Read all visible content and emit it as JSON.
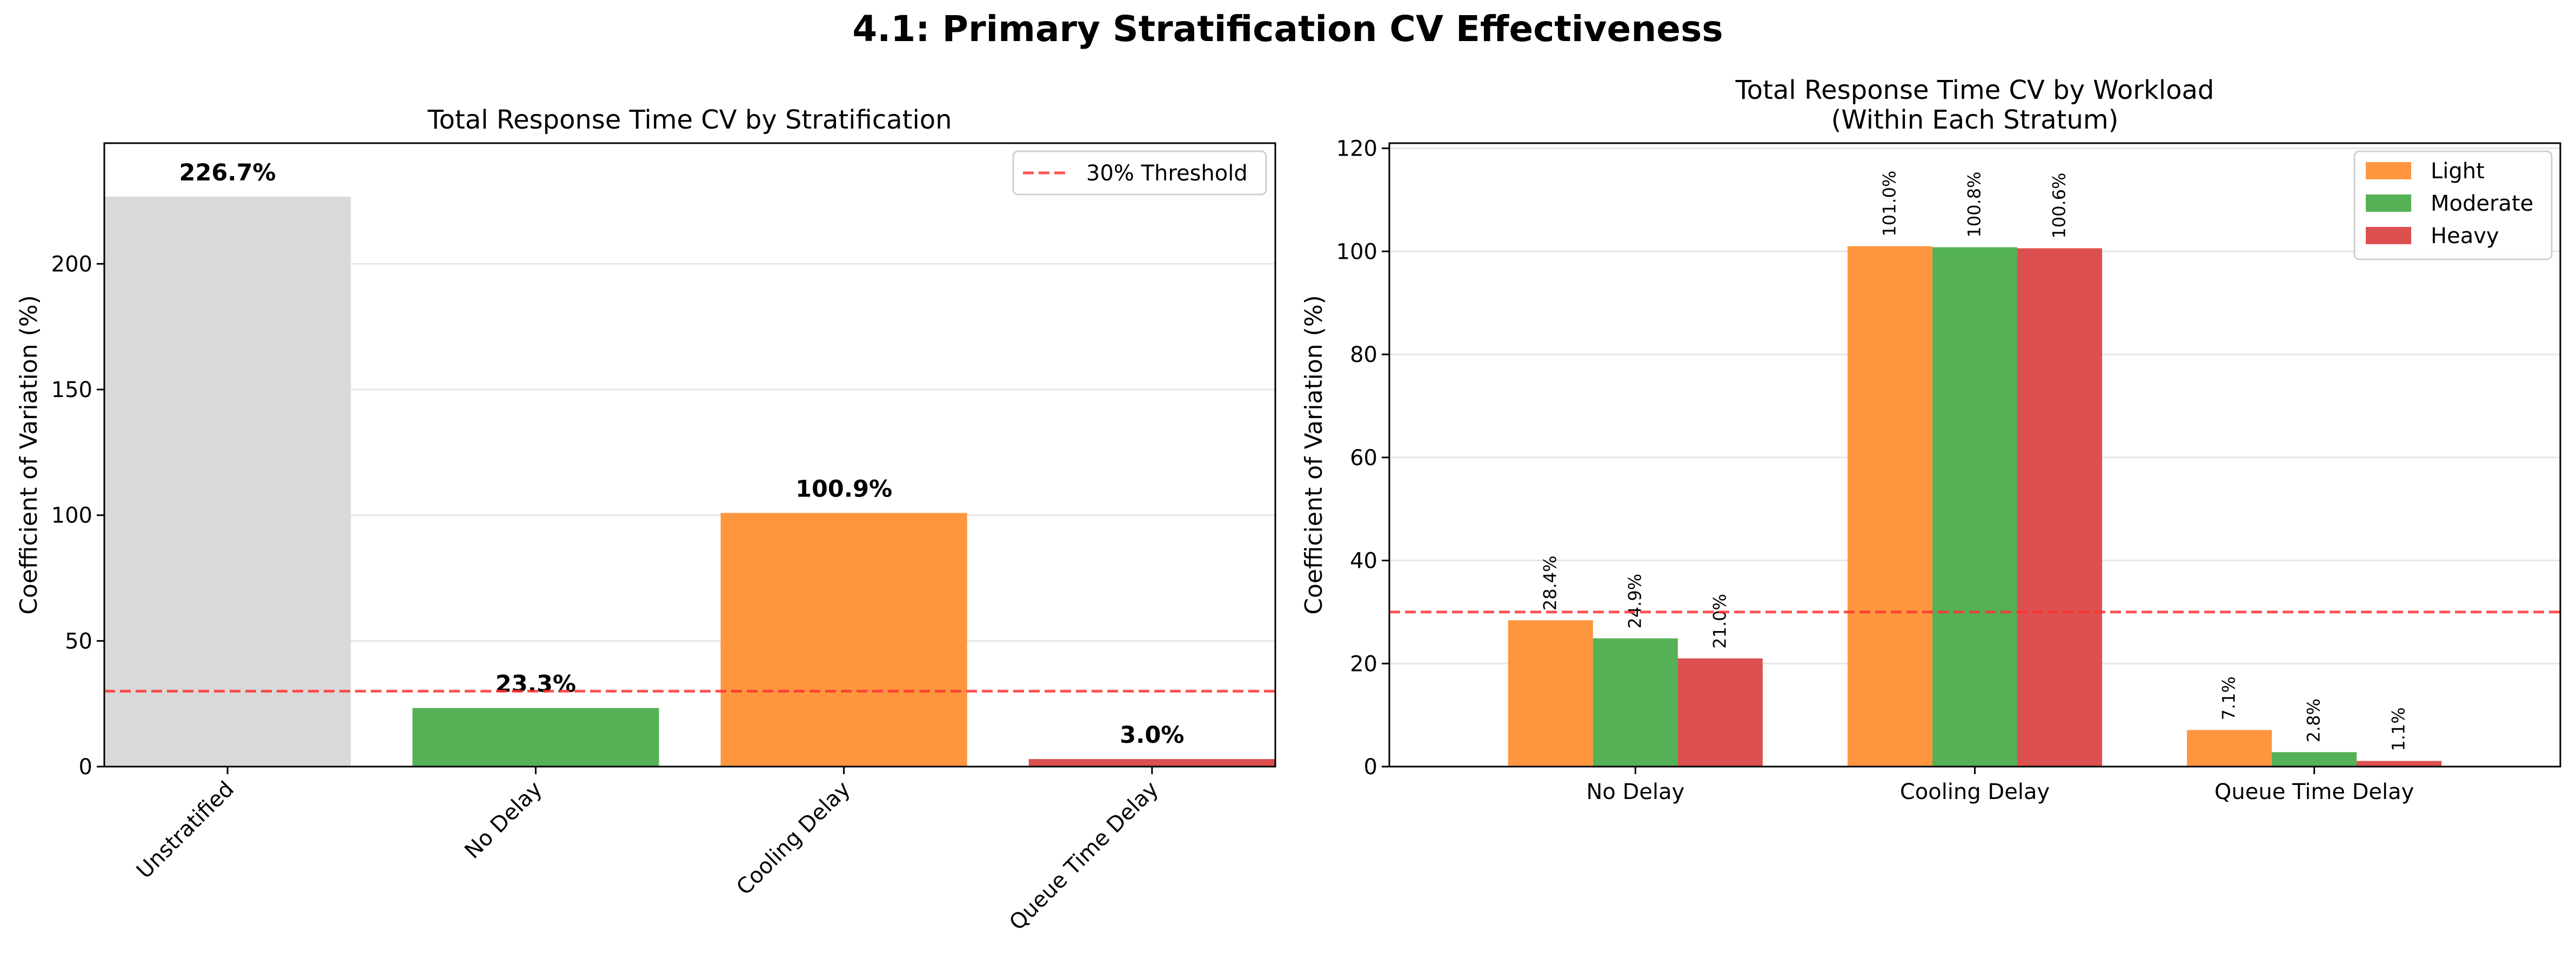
{
  "figure": {
    "suptitle": "4.1: Primary Stratification CV Effectiveness"
  },
  "chart_data": [
    {
      "type": "bar",
      "title": "Total Response Time CV by Stratification",
      "xlabel": "",
      "ylabel": "Coefficient of Variation (%)",
      "ylim": [
        0,
        248
      ],
      "yticks": [
        0,
        50,
        100,
        150,
        200
      ],
      "categories": [
        "Unstratified",
        "No Delay",
        "Cooling Delay",
        "Queue Time Delay"
      ],
      "values": [
        226.7,
        23.3,
        100.9,
        3.0
      ],
      "value_labels": [
        "226.7%",
        "23.3%",
        "100.9%",
        "3.0%"
      ],
      "colors": [
        "#d9d9d9",
        "#55b155",
        "#fd963e",
        "#dc5050"
      ],
      "threshold": {
        "value": 30,
        "label": "30% Threshold",
        "color": "#ff3333"
      },
      "grid": "y",
      "legend": "top-right"
    },
    {
      "type": "bar",
      "title_lines": [
        "Total Response Time CV by Workload",
        "(Within Each Stratum)"
      ],
      "xlabel": "",
      "ylabel": "Coefficient of Variation (%)",
      "ylim": [
        0,
        121
      ],
      "yticks": [
        0,
        20,
        40,
        60,
        80,
        100,
        120
      ],
      "categories": [
        "No Delay",
        "Cooling Delay",
        "Queue Time Delay"
      ],
      "series": [
        {
          "name": "Light",
          "color": "#fd963e",
          "values": [
            28.4,
            101.0,
            7.1
          ],
          "labels": [
            "28.4%",
            "101.0%",
            "7.1%"
          ]
        },
        {
          "name": "Moderate",
          "color": "#55b155",
          "values": [
            24.9,
            100.8,
            2.8
          ],
          "labels": [
            "24.9%",
            "100.8%",
            "2.8%"
          ]
        },
        {
          "name": "Heavy",
          "color": "#dc5050",
          "values": [
            21.0,
            100.6,
            1.1
          ],
          "labels": [
            "21.0%",
            "100.6%",
            "1.1%"
          ]
        }
      ],
      "threshold": {
        "value": 30,
        "color": "#ff3333"
      },
      "grid": "y",
      "legend": "top-right"
    }
  ]
}
